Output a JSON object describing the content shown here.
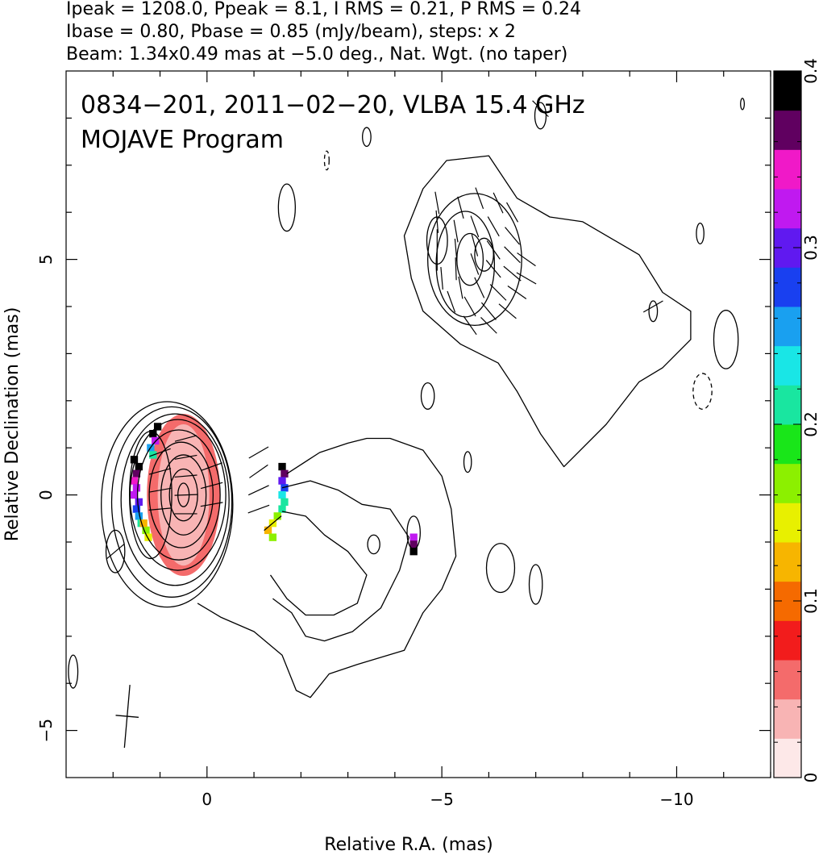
{
  "header": {
    "line1": "Ipeak = 1208.0, Ppeak = 8.1, I RMS = 0.21, P RMS = 0.24",
    "line2": "Ibase = 0.80, Pbase = 0.85 (mJy/beam), steps: x 2",
    "line3": "Beam: 1.34x0.49 mas at −5.0 deg., Nat. Wgt. (no taper)"
  },
  "chart_data": {
    "type": "heatmap",
    "title": "0834−201, 2011−02−20, VLBA 15.4 GHz",
    "subtitle": "MOJAVE Program",
    "xlabel": "Relative R.A. (mas)",
    "ylabel": "Relative Declination (mas)",
    "xlim": [
      3.0,
      -12.0
    ],
    "ylim": [
      -6.0,
      9.0
    ],
    "x_ticks": [
      {
        "value": 0,
        "label": "0"
      },
      {
        "value": -5,
        "label": "−5"
      },
      {
        "value": -10,
        "label": "−10"
      }
    ],
    "y_ticks": [
      {
        "value": 5,
        "label": "5"
      },
      {
        "value": 0,
        "label": "0"
      },
      {
        "value": -5,
        "label": "−5"
      }
    ],
    "colorbar": {
      "min": 0,
      "max": 0.4,
      "ticks": [
        {
          "value": 0,
          "label": "0"
        },
        {
          "value": 0.1,
          "label": "0.1"
        },
        {
          "value": 0.2,
          "label": "0.2"
        },
        {
          "value": 0.3,
          "label": "0.3"
        },
        {
          "value": 0.4,
          "label": "0.4"
        }
      ],
      "colors": [
        "#fde8e8",
        "#f8b4b4",
        "#f46b6b",
        "#f21c1c",
        "#f56a00",
        "#f7b500",
        "#e8f000",
        "#8cf000",
        "#19e619",
        "#19e6a0",
        "#19e6e6",
        "#19a0f0",
        "#1940f0",
        "#6019f0",
        "#c019f0",
        "#f019c8",
        "#600060",
        "#000000"
      ]
    },
    "core": {
      "x": 0.5,
      "y": 0.0,
      "peak": 1208.0
    },
    "contours": [
      {
        "cx": 0.5,
        "cy": 0.0,
        "rx": 0.12,
        "ry": 0.25
      },
      {
        "cx": 0.5,
        "cy": 0.0,
        "rx": 0.3,
        "ry": 0.55
      },
      {
        "cx": 0.5,
        "cy": 0.0,
        "rx": 0.48,
        "ry": 0.85
      },
      {
        "cx": 0.55,
        "cy": 0.0,
        "rx": 0.68,
        "ry": 1.12
      },
      {
        "cx": 0.6,
        "cy": 0.0,
        "rx": 0.88,
        "ry": 1.38
      },
      {
        "cx": 0.62,
        "cy": 0.0,
        "rx": 1.02,
        "ry": 1.6
      },
      {
        "cx": 0.68,
        "cy": -0.1,
        "rx": 1.15,
        "ry": 1.82
      },
      {
        "cx": 0.75,
        "cy": -0.15,
        "rx": 1.28,
        "ry": 2.02
      },
      {
        "cx": 0.85,
        "cy": -0.2,
        "rx": 1.4,
        "ry": 2.18
      },
      {
        "cx": 1.2,
        "cy": 0.0,
        "rx": 0.45,
        "ry": 1.35
      },
      {
        "cx": -5.6,
        "cy": 5.0,
        "rx": 0.28,
        "ry": 0.55
      },
      {
        "cx": -5.9,
        "cy": 5.1,
        "rx": 0.2,
        "ry": 0.35
      },
      {
        "cx": -5.5,
        "cy": 4.9,
        "rx": 0.62,
        "ry": 1.12
      },
      {
        "cx": -5.7,
        "cy": 5.0,
        "rx": 1.0,
        "ry": 1.4
      },
      {
        "cx": -4.9,
        "cy": 5.4,
        "rx": 0.22,
        "ry": 0.5
      },
      {
        "cx": -1.7,
        "cy": 6.1,
        "rx": 0.18,
        "ry": 0.5
      },
      {
        "cx": -3.4,
        "cy": 7.6,
        "rx": 0.09,
        "ry": 0.2
      },
      {
        "cx": -4.4,
        "cy": -0.8,
        "rx": 0.14,
        "ry": 0.35
      },
      {
        "cx": -5.55,
        "cy": 0.7,
        "rx": 0.08,
        "ry": 0.22
      },
      {
        "cx": -4.7,
        "cy": 2.1,
        "rx": 0.14,
        "ry": 0.28
      },
      {
        "cx": -3.55,
        "cy": -1.05,
        "rx": 0.13,
        "ry": 0.2
      },
      {
        "cx": -6.25,
        "cy": -1.55,
        "rx": 0.3,
        "ry": 0.52
      },
      {
        "cx": -7.0,
        "cy": -1.9,
        "rx": 0.14,
        "ry": 0.42
      },
      {
        "cx": -9.5,
        "cy": 3.9,
        "rx": 0.09,
        "ry": 0.22
      },
      {
        "cx": -10.5,
        "cy": 5.55,
        "rx": 0.08,
        "ry": 0.22
      },
      {
        "cx": -11.05,
        "cy": 3.3,
        "rx": 0.26,
        "ry": 0.62
      },
      {
        "cx": 1.95,
        "cy": -1.2,
        "rx": 0.2,
        "ry": 0.45
      },
      {
        "cx": 2.85,
        "cy": -3.75,
        "rx": 0.1,
        "ry": 0.35
      },
      {
        "cx": -11.4,
        "cy": 8.3,
        "rx": 0.04,
        "ry": 0.12
      },
      {
        "cx": -7.1,
        "cy": 8.05,
        "rx": 0.12,
        "ry": 0.28
      }
    ],
    "dashed_contours": [
      {
        "cx": -10.55,
        "cy": 2.2,
        "rx": 0.2,
        "ry": 0.38
      },
      {
        "cx": -2.55,
        "cy": 7.1,
        "rx": 0.05,
        "ry": 0.2
      }
    ],
    "jet_outline": [
      [
        -1.7,
        0.45
      ],
      [
        -2.4,
        0.9
      ],
      [
        -3.0,
        1.1
      ],
      [
        -3.4,
        1.2
      ],
      [
        -3.9,
        1.2
      ],
      [
        -4.6,
        0.95
      ],
      [
        -5.0,
        0.4
      ],
      [
        -5.2,
        -0.3
      ],
      [
        -5.3,
        -1.3
      ],
      [
        -5.0,
        -2.0
      ],
      [
        -4.6,
        -2.5
      ],
      [
        -4.2,
        -3.3
      ],
      [
        -3.2,
        -3.6
      ],
      [
        -2.6,
        -3.8
      ],
      [
        -2.2,
        -4.3
      ],
      [
        -1.9,
        -4.15
      ],
      [
        -1.6,
        -3.4
      ],
      [
        -1.0,
        -2.9
      ],
      [
        -0.3,
        -2.6
      ],
      [
        0.2,
        -2.3
      ]
    ],
    "jet_inner": [
      [
        -1.6,
        0.15
      ],
      [
        -2.2,
        0.3
      ],
      [
        -2.8,
        0.1
      ],
      [
        -3.3,
        -0.2
      ],
      [
        -3.9,
        -0.3
      ],
      [
        -4.3,
        -0.9
      ],
      [
        -4.1,
        -1.6
      ],
      [
        -3.7,
        -2.4
      ],
      [
        -3.1,
        -2.9
      ],
      [
        -2.5,
        -3.1
      ],
      [
        -2.1,
        -3.0
      ],
      [
        -1.8,
        -2.5
      ],
      [
        -1.4,
        -2.2
      ]
    ],
    "jet_inner2": [
      [
        -1.6,
        -0.35
      ],
      [
        -2.1,
        -0.45
      ],
      [
        -2.5,
        -0.85
      ],
      [
        -3.0,
        -1.2
      ],
      [
        -3.4,
        -1.7
      ],
      [
        -3.2,
        -2.3
      ],
      [
        -2.7,
        -2.55
      ],
      [
        -2.1,
        -2.55
      ],
      [
        -1.7,
        -2.2
      ],
      [
        -1.35,
        -1.7
      ]
    ],
    "north_outline": [
      [
        -4.2,
        5.5
      ],
      [
        -4.6,
        6.5
      ],
      [
        -5.1,
        7.1
      ],
      [
        -6.0,
        7.2
      ],
      [
        -6.6,
        6.3
      ],
      [
        -7.3,
        5.9
      ],
      [
        -8.0,
        5.8
      ],
      [
        -9.2,
        5.1
      ],
      [
        -9.7,
        4.3
      ],
      [
        -10.3,
        3.9
      ],
      [
        -10.3,
        3.3
      ],
      [
        -9.7,
        2.7
      ],
      [
        -9.2,
        2.4
      ],
      [
        -8.5,
        1.5
      ],
      [
        -7.6,
        0.6
      ],
      [
        -7.1,
        1.3
      ],
      [
        -6.6,
        2.2
      ],
      [
        -6.2,
        2.8
      ],
      [
        -5.4,
        3.2
      ],
      [
        -4.6,
        3.9
      ],
      [
        -4.35,
        4.6
      ]
    ],
    "polarization_pixels": [
      {
        "x": 1.55,
        "y": 0.75,
        "v": 0.4
      },
      {
        "x": 1.45,
        "y": 0.6,
        "v": 0.38
      },
      {
        "x": 1.5,
        "y": 0.45,
        "v": 0.36
      },
      {
        "x": 1.55,
        "y": 0.3,
        "v": 0.34
      },
      {
        "x": 1.5,
        "y": 0.15,
        "v": 0.32
      },
      {
        "x": 1.55,
        "y": 0.0,
        "v": 0.33
      },
      {
        "x": 1.45,
        "y": -0.15,
        "v": 0.31
      },
      {
        "x": 1.5,
        "y": -0.3,
        "v": 0.28
      },
      {
        "x": 1.45,
        "y": -0.45,
        "v": 0.25
      },
      {
        "x": 1.4,
        "y": -0.6,
        "v": 0.2
      },
      {
        "x": 1.3,
        "y": -0.75,
        "v": 0.17
      },
      {
        "x": 1.25,
        "y": -0.9,
        "v": 0.15
      },
      {
        "x": 1.35,
        "y": -0.6,
        "v": 0.12
      },
      {
        "x": 1.05,
        "y": 1.45,
        "v": 0.4
      },
      {
        "x": 1.15,
        "y": 1.3,
        "v": 0.38
      },
      {
        "x": 1.1,
        "y": 1.15,
        "v": 0.32
      },
      {
        "x": 1.2,
        "y": 1.0,
        "v": 0.26
      },
      {
        "x": 1.15,
        "y": 0.85,
        "v": 0.2
      },
      {
        "x": -1.6,
        "y": 0.6,
        "v": 0.4
      },
      {
        "x": -1.65,
        "y": 0.45,
        "v": 0.36
      },
      {
        "x": -1.6,
        "y": 0.3,
        "v": 0.3
      },
      {
        "x": -1.65,
        "y": 0.15,
        "v": 0.27
      },
      {
        "x": -1.6,
        "y": 0.0,
        "v": 0.24
      },
      {
        "x": -1.65,
        "y": -0.15,
        "v": 0.22
      },
      {
        "x": -1.6,
        "y": -0.3,
        "v": 0.2
      },
      {
        "x": -1.5,
        "y": -0.45,
        "v": 0.17
      },
      {
        "x": -1.4,
        "y": -0.6,
        "v": 0.15
      },
      {
        "x": -1.3,
        "y": -0.75,
        "v": 0.13
      },
      {
        "x": -1.4,
        "y": -0.9,
        "v": 0.17
      },
      {
        "x": -4.4,
        "y": -0.9,
        "v": 0.32
      },
      {
        "x": -4.4,
        "y": -1.05,
        "v": 0.36
      },
      {
        "x": -4.4,
        "y": -1.2,
        "v": 0.4
      }
    ],
    "evpa_sticks": [
      {
        "x": 1.0,
        "y": 0.9,
        "a": 70
      },
      {
        "x": 1.0,
        "y": 0.5,
        "a": 75
      },
      {
        "x": 1.0,
        "y": 0.1,
        "a": 80
      },
      {
        "x": 1.0,
        "y": -0.3,
        "a": 85
      },
      {
        "x": -1.1,
        "y": 0.9,
        "a": 60
      },
      {
        "x": -1.1,
        "y": 0.5,
        "a": 55
      },
      {
        "x": -1.1,
        "y": 0.1,
        "a": 65
      },
      {
        "x": -1.1,
        "y": -0.3,
        "a": 70
      },
      {
        "x": -1.4,
        "y": -0.6,
        "a": 50
      },
      {
        "x": -4.9,
        "y": 6.2,
        "a": 170
      },
      {
        "x": -5.4,
        "y": 6.1,
        "a": 165
      },
      {
        "x": -5.8,
        "y": 6.3,
        "a": 160
      },
      {
        "x": -6.2,
        "y": 6.2,
        "a": 155
      },
      {
        "x": -6.5,
        "y": 6.0,
        "a": 150
      },
      {
        "x": -4.9,
        "y": 5.8,
        "a": 175
      },
      {
        "x": -5.3,
        "y": 5.6,
        "a": 170
      },
      {
        "x": -5.7,
        "y": 5.7,
        "a": 160
      },
      {
        "x": -6.1,
        "y": 5.7,
        "a": 150
      },
      {
        "x": -6.5,
        "y": 5.5,
        "a": 140
      },
      {
        "x": -4.9,
        "y": 5.4,
        "a": 180
      },
      {
        "x": -5.3,
        "y": 5.2,
        "a": 175
      },
      {
        "x": -5.7,
        "y": 5.3,
        "a": 165
      },
      {
        "x": -6.1,
        "y": 5.2,
        "a": 145
      },
      {
        "x": -6.5,
        "y": 5.1,
        "a": 135
      },
      {
        "x": -6.8,
        "y": 5.0,
        "a": 125
      },
      {
        "x": -4.9,
        "y": 5.0,
        "a": 180
      },
      {
        "x": -5.3,
        "y": 4.8,
        "a": 178
      },
      {
        "x": -5.7,
        "y": 4.9,
        "a": 160
      },
      {
        "x": -6.1,
        "y": 4.8,
        "a": 140
      },
      {
        "x": -6.5,
        "y": 4.7,
        "a": 130
      },
      {
        "x": -6.8,
        "y": 4.6,
        "a": 120
      },
      {
        "x": -5.0,
        "y": 4.6,
        "a": 175
      },
      {
        "x": -5.4,
        "y": 4.4,
        "a": 170
      },
      {
        "x": -5.8,
        "y": 4.4,
        "a": 155
      },
      {
        "x": -6.2,
        "y": 4.3,
        "a": 135
      },
      {
        "x": -6.6,
        "y": 4.3,
        "a": 125
      },
      {
        "x": -5.2,
        "y": 4.1,
        "a": 160
      },
      {
        "x": -5.6,
        "y": 4.0,
        "a": 150
      },
      {
        "x": -6.0,
        "y": 3.9,
        "a": 140
      },
      {
        "x": -6.4,
        "y": 3.9,
        "a": 130
      },
      {
        "x": -5.6,
        "y": 3.6,
        "a": 145
      },
      {
        "x": -6.0,
        "y": 3.6,
        "a": 135
      },
      {
        "x": -9.5,
        "y": 4.0,
        "a": 60
      },
      {
        "x": -7.1,
        "y": 8.2,
        "a": 135
      },
      {
        "x": 0.45,
        "y": 1.2,
        "a": 75
      },
      {
        "x": 0.45,
        "y": 0.8,
        "a": 80
      },
      {
        "x": 0.45,
        "y": 0.4,
        "a": 85
      },
      {
        "x": 0.45,
        "y": 0.0,
        "a": 88
      },
      {
        "x": 0.45,
        "y": -0.4,
        "a": 90
      },
      {
        "x": -0.1,
        "y": 0.6,
        "a": 70
      },
      {
        "x": -0.1,
        "y": 0.2,
        "a": 75
      },
      {
        "x": -0.1,
        "y": -0.2,
        "a": 80
      },
      {
        "x": 1.95,
        "y": -1.2,
        "a": 50
      }
    ],
    "beam": {
      "x": 1.7,
      "y": -4.7,
      "major": 1.34,
      "minor": 0.49,
      "pa": -5.0
    }
  }
}
